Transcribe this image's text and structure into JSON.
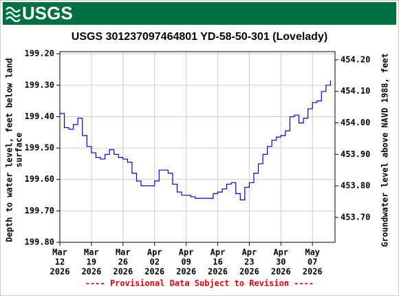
{
  "logo": "USGS",
  "chart_data": {
    "type": "line",
    "title": "USGS 301237097464801 YD-58-50-301 (Lovelady)",
    "ylabel": [
      "Depth to water level, feet below land",
      "surface"
    ],
    "y2label": "Groundwater level above NAVD 1988, feet",
    "footer": "---- Provisional Data Subject to Revision ----",
    "x": [
      "2026-03-12",
      "2026-03-13",
      "2026-03-14",
      "2026-03-15",
      "2026-03-16",
      "2026-03-17",
      "2026-03-18",
      "2026-03-19",
      "2026-03-20",
      "2026-03-21",
      "2026-03-22",
      "2026-03-23",
      "2026-03-24",
      "2026-03-25",
      "2026-03-26",
      "2026-03-27",
      "2026-03-28",
      "2026-03-29",
      "2026-03-30",
      "2026-03-31",
      "2026-04-01",
      "2026-04-02",
      "2026-04-03",
      "2026-04-04",
      "2026-04-05",
      "2026-04-06",
      "2026-04-07",
      "2026-04-08",
      "2026-04-09",
      "2026-04-10",
      "2026-04-11",
      "2026-04-12",
      "2026-04-13",
      "2026-04-14",
      "2026-04-15",
      "2026-04-16",
      "2026-04-17",
      "2026-04-18",
      "2026-04-19",
      "2026-04-20",
      "2026-04-21",
      "2026-04-22",
      "2026-04-23",
      "2026-04-24",
      "2026-04-25",
      "2026-04-26",
      "2026-04-27",
      "2026-04-28",
      "2026-04-29",
      "2026-04-30",
      "2026-05-01",
      "2026-05-02",
      "2026-05-03",
      "2026-05-04",
      "2026-05-05",
      "2026-05-06",
      "2026-05-07",
      "2026-05-08",
      "2026-05-09",
      "2026-05-10",
      "2026-05-11"
    ],
    "series": [
      {
        "color": "#0000cc",
        "values": [
          199.39,
          199.435,
          199.44,
          199.425,
          199.405,
          199.46,
          199.495,
          199.515,
          199.53,
          199.535,
          199.52,
          199.505,
          199.52,
          199.53,
          199.535,
          199.545,
          199.58,
          199.605,
          199.62,
          199.62,
          199.62,
          199.605,
          199.57,
          199.57,
          199.58,
          199.615,
          199.64,
          199.65,
          199.65,
          199.655,
          199.66,
          199.66,
          199.66,
          199.66,
          199.645,
          199.64,
          199.63,
          199.615,
          199.61,
          199.645,
          199.665,
          199.625,
          199.61,
          199.58,
          199.55,
          199.52,
          199.495,
          199.475,
          199.465,
          199.46,
          199.445,
          199.4,
          199.395,
          199.42,
          199.405,
          199.375,
          199.355,
          199.35,
          199.32,
          199.3,
          199.285
        ]
      }
    ],
    "xlim": [
      "2026-03-12",
      "2026-05-12"
    ],
    "xticks": [
      {
        "value": "2026-03-12",
        "label": [
          "Mar",
          "12",
          "2026"
        ]
      },
      {
        "value": "2026-03-19",
        "label": [
          "Mar",
          "19",
          "2026"
        ]
      },
      {
        "value": "2026-03-26",
        "label": [
          "Mar",
          "26",
          "2026"
        ]
      },
      {
        "value": "2026-04-02",
        "label": [
          "Apr",
          "02",
          "2026"
        ]
      },
      {
        "value": "2026-04-09",
        "label": [
          "Apr",
          "09",
          "2026"
        ]
      },
      {
        "value": "2026-04-16",
        "label": [
          "Apr",
          "16",
          "2026"
        ]
      },
      {
        "value": "2026-04-23",
        "label": [
          "Apr",
          "23",
          "2026"
        ]
      },
      {
        "value": "2026-04-30",
        "label": [
          "Apr",
          "30",
          "2026"
        ]
      },
      {
        "value": "2026-05-07",
        "label": [
          "May",
          "07",
          "2026"
        ]
      }
    ],
    "ylim": [
      199.8,
      199.193
    ],
    "yticks": [
      {
        "value": 199.2,
        "label": "199.20"
      },
      {
        "value": 199.3,
        "label": "199.30"
      },
      {
        "value": 199.4,
        "label": "199.40"
      },
      {
        "value": 199.5,
        "label": "199.50"
      },
      {
        "value": 199.6,
        "label": "199.60"
      },
      {
        "value": 199.7,
        "label": "199.70"
      },
      {
        "value": 199.8,
        "label": "199.80"
      }
    ],
    "y2lim": [
      453.621,
      454.226
    ],
    "y2ticks": [
      {
        "value": 453.7,
        "label": "453.70"
      },
      {
        "value": 453.8,
        "label": "453.80"
      },
      {
        "value": 453.9,
        "label": "453.90"
      },
      {
        "value": 454.0,
        "label": "454.00"
      },
      {
        "value": 454.1,
        "label": "454.10"
      },
      {
        "value": 454.2,
        "label": "454.20"
      }
    ],
    "grid": true
  }
}
